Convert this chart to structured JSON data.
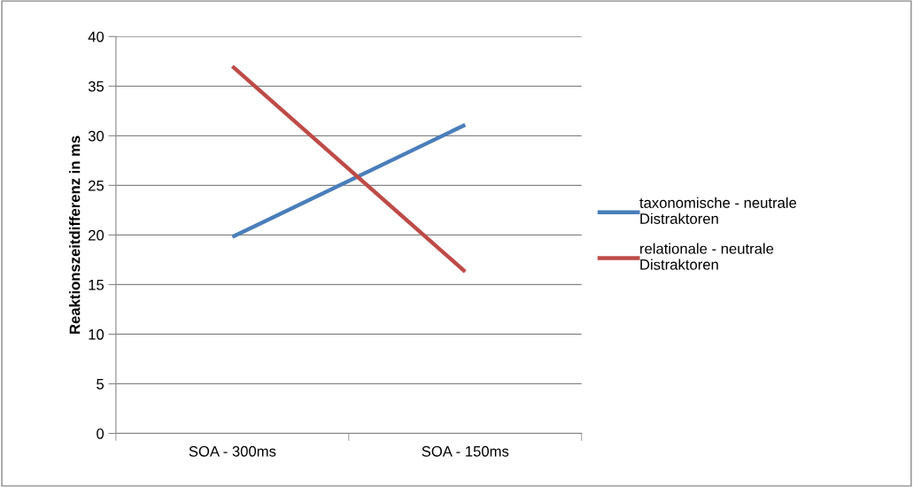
{
  "chart_data": {
    "type": "line",
    "ylabel": "Reaktionszeitdifferenz in ms",
    "categories": [
      "SOA - 300ms",
      "SOA - 150ms"
    ],
    "series": [
      {
        "name": "taxonomische - neutrale Distraktoren",
        "color": "#4a7ebb",
        "values": [
          19.8,
          31.1
        ]
      },
      {
        "name": "relationale - neutrale Distraktoren",
        "color": "#be4b48",
        "values": [
          37,
          16.3
        ]
      }
    ],
    "ylim": [
      0,
      40
    ],
    "yticks": [
      0,
      5,
      10,
      15,
      20,
      25,
      30,
      35,
      40
    ],
    "grid": "y",
    "legend": "right",
    "marker": "none",
    "line_style": "solid"
  }
}
